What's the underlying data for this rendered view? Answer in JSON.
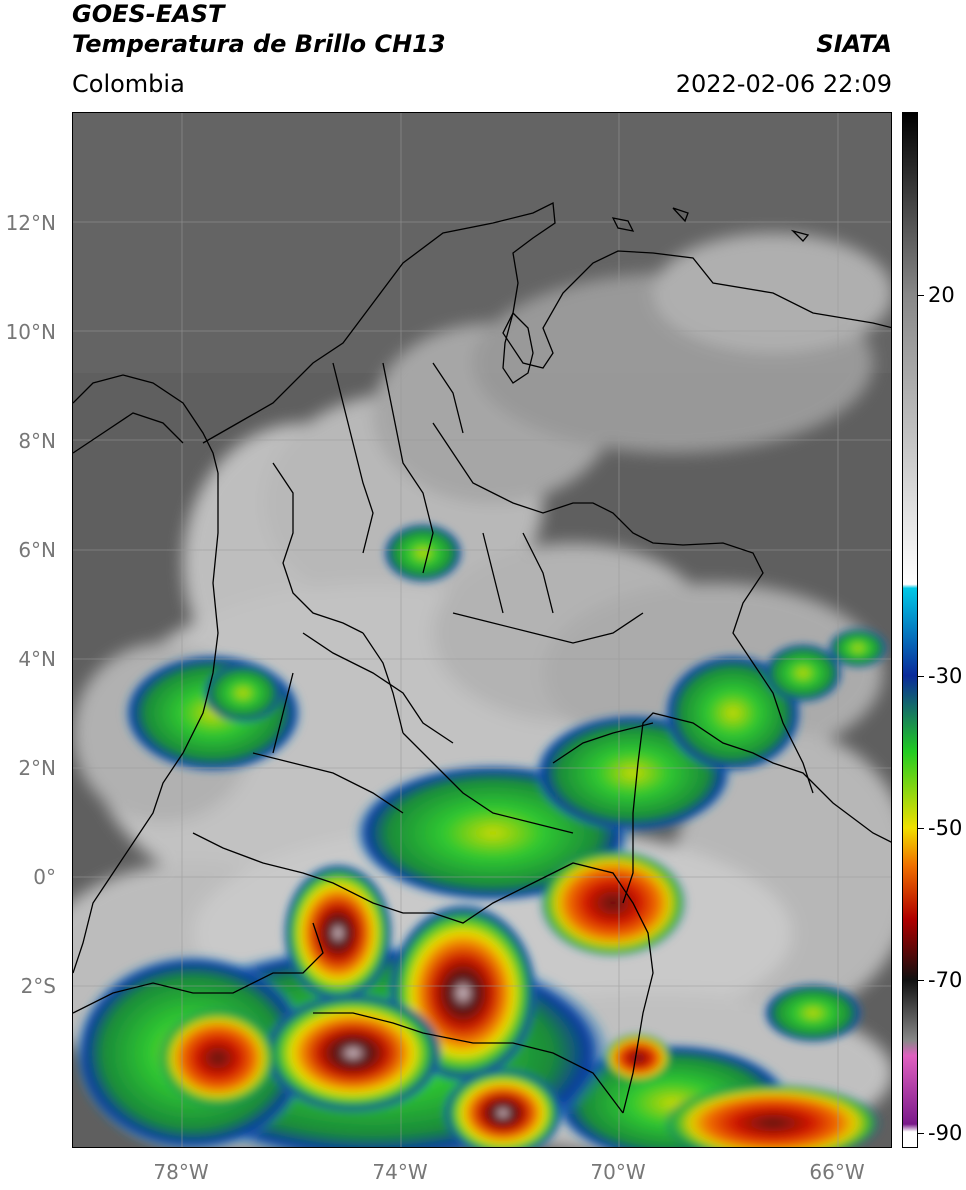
{
  "header": {
    "satellite": "GOES-EAST",
    "product": "Temperatura de Brillo CH13",
    "organization": "SIATA",
    "region": "Colombia",
    "timestamp": "2022-02-06 22:09"
  },
  "map": {
    "lat_labels": [
      "12°N",
      "10°N",
      "8°N",
      "6°N",
      "4°N",
      "2°N",
      "0°",
      "2°S"
    ],
    "lon_labels": [
      "78°W",
      "74°W",
      "70°W",
      "66°W"
    ],
    "extent": {
      "lon_min": -79.6,
      "lon_max": -64.6,
      "lat_min": -4.9,
      "lat_max": 14.1
    },
    "gridlines": true,
    "colors": {
      "background_cloud_free": "#5c5c5c",
      "cold_cloud_green": "#33cc33",
      "cold_cloud_red": "#cc1a00",
      "border_lines": "#000000",
      "grid_lines": "#9a9a9a"
    }
  },
  "colorbar": {
    "ticks": [
      "20",
      "-30",
      "-50",
      "-70",
      "-90"
    ],
    "tick_values": [
      20,
      -30,
      -50,
      -70,
      -90
    ],
    "range": [
      -92,
      44
    ],
    "colors": {
      "warm_top": "#000000",
      "warm_mid": "#888888",
      "warm_light": "#ffffff",
      "cyan": "#00c8e6",
      "blue": "#0a2a9a",
      "green": "#22cc22",
      "yellow": "#f0e000",
      "orange": "#f07000",
      "red": "#b00000",
      "black_band": "#101010",
      "pink": "#e060c0",
      "purple": "#7a1a8a"
    }
  }
}
